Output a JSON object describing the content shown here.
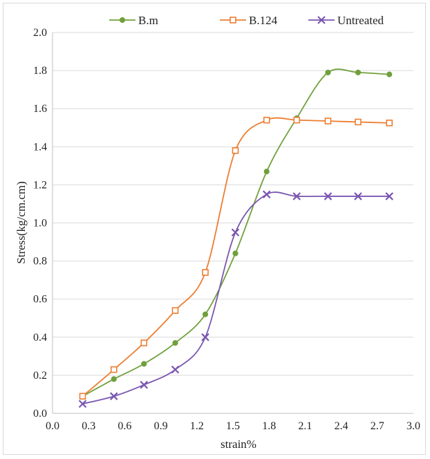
{
  "chart_data": {
    "type": "line",
    "title": "",
    "xlabel": "strain%",
    "ylabel": "Stress(kg/cm.cm)",
    "xlim": [
      0.0,
      3.0
    ],
    "ylim": [
      0.0,
      2.0
    ],
    "xticks": [
      "0.0",
      "0.3",
      "0.6",
      "0.9",
      "1.2",
      "1.5",
      "1.8",
      "2.1",
      "2.4",
      "2.7",
      "3.0"
    ],
    "yticks": [
      "0.0",
      "0.2",
      "0.4",
      "0.6",
      "0.8",
      "1.0",
      "1.2",
      "1.4",
      "1.6",
      "1.8",
      "2.0"
    ],
    "grid": "horizontal",
    "legend_position": "top",
    "series": [
      {
        "name": "B.m",
        "color": "#70a03c",
        "marker": "circle",
        "x": [
          0.25,
          0.51,
          0.76,
          1.02,
          1.27,
          1.52,
          1.78,
          2.03,
          2.29,
          2.54,
          2.8
        ],
        "y": [
          0.09,
          0.18,
          0.26,
          0.37,
          0.52,
          0.84,
          1.27,
          1.55,
          1.79,
          1.79,
          1.78
        ]
      },
      {
        "name": "B.124",
        "color": "#ed7d31",
        "marker": "square",
        "x": [
          0.25,
          0.51,
          0.76,
          1.02,
          1.27,
          1.52,
          1.78,
          2.03,
          2.29,
          2.54,
          2.8
        ],
        "y": [
          0.09,
          0.23,
          0.37,
          0.54,
          0.74,
          1.38,
          1.54,
          1.54,
          1.535,
          1.53,
          1.525
        ]
      },
      {
        "name": "Untreated",
        "color": "#7a56b0",
        "marker": "x",
        "x": [
          0.25,
          0.51,
          0.76,
          1.02,
          1.27,
          1.52,
          1.78,
          2.03,
          2.29,
          2.54,
          2.8
        ],
        "y": [
          0.05,
          0.09,
          0.15,
          0.23,
          0.4,
          0.95,
          1.15,
          1.14,
          1.14,
          1.14,
          1.14
        ]
      }
    ]
  }
}
